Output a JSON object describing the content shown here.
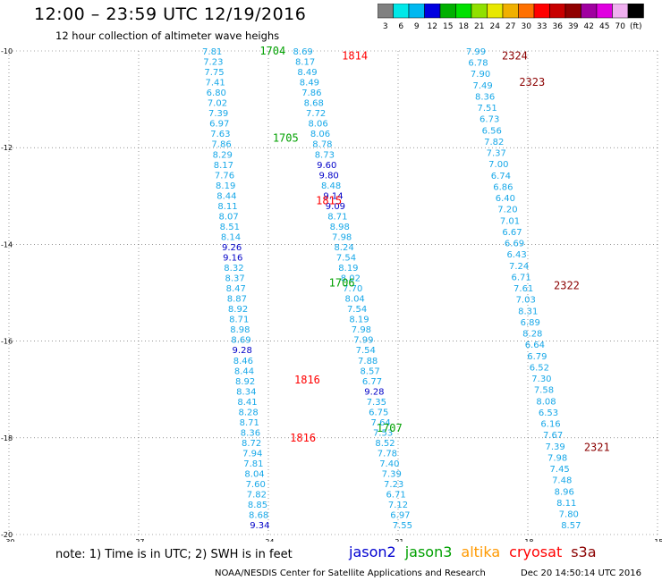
{
  "header": {
    "title": "12:00 – 23:59 UTC 12/19/2016",
    "subtitle": "12 hour collection of altimeter wave heighs"
  },
  "color_scale": {
    "colors": [
      "#808080",
      "#00e8e8",
      "#00b8f0",
      "#0000e0",
      "#00b000",
      "#00e000",
      "#90e000",
      "#e8e800",
      "#f0b000",
      "#ff7000",
      "#ff0000",
      "#c80000",
      "#900000",
      "#a000a0",
      "#e000e0",
      "#f0b0f0",
      "#000000"
    ],
    "labels": [
      "3",
      "6",
      "9",
      "12",
      "15",
      "18",
      "21",
      "24",
      "27",
      "30",
      "33",
      "36",
      "39",
      "42",
      "45",
      "70",
      "(ft)"
    ]
  },
  "footer": {
    "note": "note:  1) Time is in UTC;  2) SWH is in feet",
    "credit": "NOAA/NESDIS Center for Satellite Applications and Research",
    "timestamp": "Dec 20 14:50:14 UTC 2016"
  },
  "legend": [
    {
      "name": "jason2",
      "color": "#0000d0"
    },
    {
      "name": "jason3",
      "color": "#00a000"
    },
    {
      "name": "altika",
      "color": "#ff9900"
    },
    {
      "name": "cryosat",
      "color": "#ff0000"
    },
    {
      "name": "s3a",
      "color": "#8b0000"
    }
  ],
  "chart_data": {
    "type": "scatter",
    "xlim": [
      -30,
      -15
    ],
    "ylim": [
      -20,
      -10
    ],
    "x_ticks": [
      "-30",
      "-27",
      "-24",
      "-21",
      "-18",
      "-15"
    ],
    "y_ticks": [
      "-10",
      "-12",
      "-14",
      "-16",
      "-18",
      "-20"
    ],
    "series": [
      {
        "name": "track A",
        "start": [
          -25.3,
          -10.0
        ],
        "end": [
          -24.2,
          -19.8
        ],
        "values": [
          "7.81",
          "7.23",
          "7.75",
          "7.41",
          "6.80",
          "7.02",
          "7.39",
          "6.97",
          "7.63",
          "7.86",
          "8.29",
          "8.17",
          "7.76",
          "8.19",
          "8.44",
          "8.11",
          "8.07",
          "8.51",
          "8.14",
          "9.26",
          "9.16",
          "8.32",
          "8.37",
          "8.47",
          "8.87",
          "8.92",
          "8.71",
          "8.98",
          "8.69",
          "9.28",
          "8.46",
          "8.44",
          "8.92",
          "8.34",
          "8.41",
          "8.28",
          "8.71",
          "8.36",
          "8.72",
          "7.94",
          "7.81",
          "8.04",
          "7.60",
          "7.82",
          "8.85",
          "8.68",
          "9.34"
        ]
      },
      {
        "name": "track B",
        "start": [
          -23.2,
          -10.0
        ],
        "end": [
          -20.9,
          -19.8
        ],
        "values": [
          "8.69",
          "8.17",
          "8.49",
          "8.49",
          "7.86",
          "8.68",
          "7.72",
          "8.06",
          "8.06",
          "8.78",
          "8.73",
          "9.60",
          "9.80",
          "8.48",
          "9.14",
          "9.09",
          "8.71",
          "8.98",
          "7.98",
          "8.24",
          "7.54",
          "8.19",
          "8.02",
          "7.70",
          "8.04",
          "7.54",
          "8.19",
          "7.98",
          "7.99",
          "7.54",
          "7.88",
          "8.57",
          "6.77",
          "9.28",
          "7.35",
          "6.75",
          "7.64",
          "7.53",
          "8.52",
          "7.78",
          "7.40",
          "7.39",
          "7.23",
          "6.71",
          "7.12",
          "6.97",
          "7.55"
        ]
      },
      {
        "name": "track C",
        "start": [
          -19.2,
          -10.0
        ],
        "end": [
          -17.0,
          -19.8
        ],
        "values": [
          "7.99",
          "6.78",
          "7.90",
          "7.49",
          "8.36",
          "7.51",
          "6.73",
          "6.56",
          "7.82",
          "7.37",
          "7.00",
          "6.74",
          "6.86",
          "6.40",
          "7.20",
          "7.01",
          "6.67",
          "6.69",
          "6.43",
          "7.24",
          "6.71",
          "7.61",
          "7.03",
          "8.31",
          "6.89",
          "8.28",
          "6.64",
          "6.79",
          "6.52",
          "7.30",
          "7.58",
          "8.08",
          "6.53",
          "6.16",
          "7.67",
          "7.39",
          "7.98",
          "7.45",
          "7.48",
          "8.96",
          "8.11",
          "7.80",
          "8.57"
        ]
      }
    ],
    "pass_labels": [
      {
        "text": "1704",
        "color": "#00a000",
        "x": -24.2,
        "y": -10.0
      },
      {
        "text": "1814",
        "color": "#ff0000",
        "x": -22.3,
        "y": -10.1
      },
      {
        "text": "2324",
        "color": "#8b0000",
        "x": -18.6,
        "y": -10.1
      },
      {
        "text": "2323",
        "color": "#8b0000",
        "x": -18.2,
        "y": -10.65
      },
      {
        "text": "1705",
        "color": "#00a000",
        "x": -23.9,
        "y": -11.8
      },
      {
        "text": "1815",
        "color": "#ff0000",
        "x": -22.9,
        "y": -13.1
      },
      {
        "text": "1706",
        "color": "#00a000",
        "x": -22.6,
        "y": -14.8
      },
      {
        "text": "2322",
        "color": "#8b0000",
        "x": -17.4,
        "y": -14.85
      },
      {
        "text": "1816",
        "color": "#ff0000",
        "x": -23.4,
        "y": -16.8
      },
      {
        "text": "1707",
        "color": "#00a000",
        "x": -21.5,
        "y": -17.8
      },
      {
        "text": "1816",
        "color": "#ff0000",
        "x": -23.5,
        "y": -18.0
      },
      {
        "text": "2321",
        "color": "#8b0000",
        "x": -16.7,
        "y": -18.2
      }
    ]
  }
}
